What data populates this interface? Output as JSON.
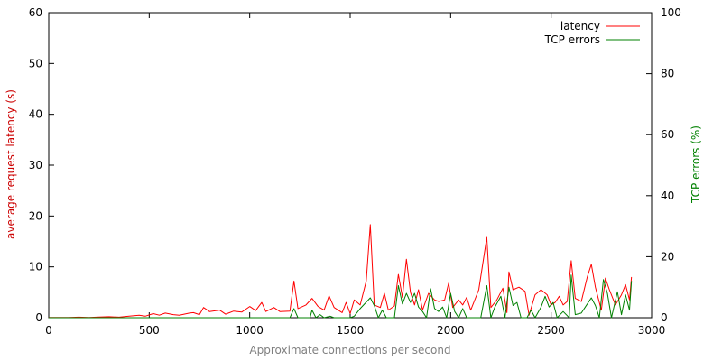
{
  "chart_data": {
    "type": "line",
    "xlabel": "Approximate connections per second",
    "ylabel_left": "average request latency (s)",
    "ylabel_right": "TCP errors (%)",
    "xlim": [
      0,
      3000
    ],
    "ylim_left": [
      0,
      60
    ],
    "ylim_right": [
      0,
      100
    ],
    "x_ticks": [
      0,
      500,
      1000,
      1500,
      2000,
      2500,
      3000
    ],
    "y_ticks_left": [
      0,
      10,
      20,
      30,
      40,
      50,
      60
    ],
    "y_ticks_right": [
      0,
      20,
      40,
      60,
      80,
      100
    ],
    "grid": false,
    "legend_position": "top-right",
    "colors": {
      "latency": "#ff0000",
      "errors": "#008000",
      "axis_title_left": "#cc0000",
      "axis_title_right": "#008000",
      "axis_title_x": "#808080"
    },
    "series": [
      {
        "name": "latency",
        "axis": "left",
        "points": [
          [
            0,
            0.05
          ],
          [
            100,
            0.05
          ],
          [
            150,
            0.1
          ],
          [
            200,
            0.05
          ],
          [
            250,
            0.15
          ],
          [
            300,
            0.2
          ],
          [
            350,
            0.1
          ],
          [
            400,
            0.3
          ],
          [
            450,
            0.5
          ],
          [
            480,
            0.3
          ],
          [
            520,
            0.8
          ],
          [
            550,
            0.5
          ],
          [
            580,
            0.9
          ],
          [
            620,
            0.6
          ],
          [
            650,
            0.5
          ],
          [
            700,
            0.9
          ],
          [
            720,
            1.0
          ],
          [
            750,
            0.6
          ],
          [
            770,
            2.0
          ],
          [
            800,
            1.2
          ],
          [
            850,
            1.5
          ],
          [
            880,
            0.7
          ],
          [
            920,
            1.3
          ],
          [
            960,
            1.1
          ],
          [
            1000,
            2.2
          ],
          [
            1030,
            1.4
          ],
          [
            1060,
            3.0
          ],
          [
            1080,
            1.2
          ],
          [
            1120,
            2.0
          ],
          [
            1150,
            1.2
          ],
          [
            1200,
            1.3
          ],
          [
            1220,
            7.2
          ],
          [
            1240,
            1.8
          ],
          [
            1280,
            2.5
          ],
          [
            1310,
            3.8
          ],
          [
            1340,
            2.2
          ],
          [
            1370,
            1.5
          ],
          [
            1395,
            4.3
          ],
          [
            1420,
            2.0
          ],
          [
            1460,
            1.0
          ],
          [
            1480,
            3.0
          ],
          [
            1500,
            0.8
          ],
          [
            1520,
            3.5
          ],
          [
            1550,
            2.5
          ],
          [
            1580,
            7.2
          ],
          [
            1600,
            18.3
          ],
          [
            1620,
            2.5
          ],
          [
            1650,
            2.0
          ],
          [
            1670,
            4.8
          ],
          [
            1690,
            1.5
          ],
          [
            1720,
            2.3
          ],
          [
            1740,
            8.5
          ],
          [
            1760,
            4.0
          ],
          [
            1780,
            11.5
          ],
          [
            1800,
            5.0
          ],
          [
            1820,
            2.5
          ],
          [
            1840,
            5.5
          ],
          [
            1860,
            1.5
          ],
          [
            1890,
            4.8
          ],
          [
            1920,
            3.5
          ],
          [
            1940,
            3.2
          ],
          [
            1970,
            3.5
          ],
          [
            1990,
            6.8
          ],
          [
            2010,
            2.0
          ],
          [
            2040,
            3.5
          ],
          [
            2060,
            2.5
          ],
          [
            2080,
            4.0
          ],
          [
            2100,
            1.5
          ],
          [
            2140,
            5.5
          ],
          [
            2180,
            15.8
          ],
          [
            2200,
            2.0
          ],
          [
            2230,
            3.5
          ],
          [
            2260,
            5.8
          ],
          [
            2280,
            1.0
          ],
          [
            2290,
            9.0
          ],
          [
            2310,
            5.5
          ],
          [
            2340,
            6.0
          ],
          [
            2370,
            5.2
          ],
          [
            2390,
            0.5
          ],
          [
            2420,
            4.5
          ],
          [
            2450,
            5.5
          ],
          [
            2480,
            4.5
          ],
          [
            2500,
            2.5
          ],
          [
            2520,
            3.0
          ],
          [
            2540,
            4.2
          ],
          [
            2560,
            2.5
          ],
          [
            2580,
            3.2
          ],
          [
            2600,
            11.2
          ],
          [
            2620,
            3.8
          ],
          [
            2650,
            3.2
          ],
          [
            2680,
            8.0
          ],
          [
            2700,
            10.5
          ],
          [
            2720,
            6.0
          ],
          [
            2750,
            1.5
          ],
          [
            2770,
            7.8
          ],
          [
            2790,
            5.5
          ],
          [
            2820,
            2.5
          ],
          [
            2850,
            4.5
          ],
          [
            2870,
            6.5
          ],
          [
            2890,
            3.5
          ],
          [
            2900,
            8.0
          ]
        ]
      },
      {
        "name": "TCP errors",
        "axis": "right",
        "points": [
          [
            0,
            0
          ],
          [
            1200,
            0
          ],
          [
            1220,
            3.0
          ],
          [
            1240,
            0
          ],
          [
            1300,
            0
          ],
          [
            1310,
            2.5
          ],
          [
            1330,
            0
          ],
          [
            1350,
            1.0
          ],
          [
            1370,
            0
          ],
          [
            1400,
            0.5
          ],
          [
            1420,
            0
          ],
          [
            1500,
            0
          ],
          [
            1520,
            0.5
          ],
          [
            1550,
            3.0
          ],
          [
            1600,
            6.5
          ],
          [
            1620,
            4.0
          ],
          [
            1640,
            0
          ],
          [
            1660,
            2.5
          ],
          [
            1680,
            0
          ],
          [
            1720,
            0
          ],
          [
            1740,
            10.5
          ],
          [
            1760,
            4.5
          ],
          [
            1780,
            8.0
          ],
          [
            1800,
            5.0
          ],
          [
            1820,
            8.0
          ],
          [
            1840,
            3.5
          ],
          [
            1860,
            2.0
          ],
          [
            1880,
            0
          ],
          [
            1900,
            9.5
          ],
          [
            1920,
            3.0
          ],
          [
            1940,
            2.0
          ],
          [
            1960,
            3.5
          ],
          [
            1980,
            0
          ],
          [
            2000,
            8.0
          ],
          [
            2020,
            2.0
          ],
          [
            2040,
            0
          ],
          [
            2060,
            3.0
          ],
          [
            2080,
            0
          ],
          [
            2150,
            0
          ],
          [
            2180,
            10.5
          ],
          [
            2200,
            0
          ],
          [
            2220,
            3.5
          ],
          [
            2250,
            7.0
          ],
          [
            2270,
            0
          ],
          [
            2290,
            10.0
          ],
          [
            2310,
            4.0
          ],
          [
            2330,
            5.0
          ],
          [
            2350,
            0
          ],
          [
            2380,
            0
          ],
          [
            2400,
            2.5
          ],
          [
            2420,
            0
          ],
          [
            2450,
            3.5
          ],
          [
            2470,
            7.0
          ],
          [
            2490,
            3.5
          ],
          [
            2510,
            5.0
          ],
          [
            2530,
            0
          ],
          [
            2560,
            2.0
          ],
          [
            2590,
            0
          ],
          [
            2600,
            14.0
          ],
          [
            2620,
            1.0
          ],
          [
            2650,
            1.5
          ],
          [
            2670,
            3.5
          ],
          [
            2700,
            6.5
          ],
          [
            2720,
            4.0
          ],
          [
            2740,
            0
          ],
          [
            2760,
            12.5
          ],
          [
            2780,
            8.0
          ],
          [
            2800,
            0
          ],
          [
            2830,
            8.5
          ],
          [
            2850,
            1.0
          ],
          [
            2870,
            7.5
          ],
          [
            2890,
            2.5
          ],
          [
            2900,
            12.0
          ]
        ]
      }
    ]
  }
}
